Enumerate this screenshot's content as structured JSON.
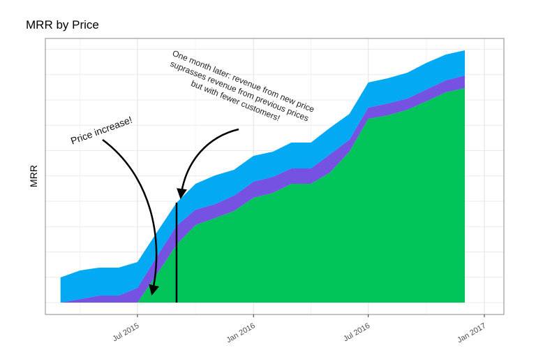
{
  "chart_data": {
    "type": "area",
    "stacked": true,
    "title": "MRR by Price",
    "xlabel": "",
    "ylabel": "MRR",
    "x": [
      "2015-03-01",
      "2015-04-01",
      "2015-05-01",
      "2015-06-01",
      "2015-07-01",
      "2015-08-01",
      "2015-09-01",
      "2015-10-01",
      "2015-11-01",
      "2015-12-01",
      "2016-01-01",
      "2016-02-01",
      "2016-03-01",
      "2016-04-01",
      "2016-05-01",
      "2016-06-01",
      "2016-07-01",
      "2016-08-01",
      "2016-09-01",
      "2016-10-01",
      "2016-11-01",
      "2016-12-01"
    ],
    "series": [
      {
        "color": "#00c45a",
        "values": [
          0,
          0,
          0,
          0,
          0,
          4.1,
          8.3,
          11.1,
          12.1,
          13.1,
          15.0,
          15.7,
          17.0,
          17.0,
          18.6,
          21.6,
          26.3,
          26.8,
          27.6,
          28.8,
          30.1,
          30.7
        ]
      },
      {
        "color": "#7652e2",
        "values": [
          0,
          0.5,
          1.0,
          1.0,
          2.1,
          2.5,
          2.7,
          2.2,
          2.0,
          2.2,
          2.3,
          2.3,
          2.2,
          2.2,
          2.6,
          1.7,
          1.6,
          1.7,
          1.6,
          1.7,
          1.7,
          1.8
        ]
      },
      {
        "color": "#03a9f2",
        "values": [
          3.6,
          4.1,
          4.0,
          4.0,
          3.7,
          3.5,
          3.3,
          3.7,
          4.1,
          3.7,
          3.7,
          3.6,
          3.7,
          3.7,
          3.8,
          3.7,
          3.6,
          3.6,
          3.7,
          3.8,
          3.7,
          3.6
        ]
      }
    ],
    "xlim": [
      "2015-02-05",
      "2017-02-01"
    ],
    "ylim": [
      -1.7,
      37.8
    ],
    "y_tick_labels": false,
    "x_ticks": [
      {
        "date": "2015-07-01",
        "label": "Jul 2015"
      },
      {
        "date": "2016-01-01",
        "label": "Jan 2016"
      },
      {
        "date": "2016-07-01",
        "label": "Jul 2016"
      },
      {
        "date": "2017-01-01",
        "label": "Jan 2017"
      }
    ],
    "grid": true,
    "legend": "none",
    "vline": {
      "date": "2015-09-01"
    },
    "annotations": [
      {
        "id": "price",
        "text": "Price increase!"
      },
      {
        "id": "later",
        "lines": [
          "One month later: revenue from new price",
          "suprasses revenue from previous prices",
          "but with fewer customers!"
        ]
      }
    ]
  }
}
